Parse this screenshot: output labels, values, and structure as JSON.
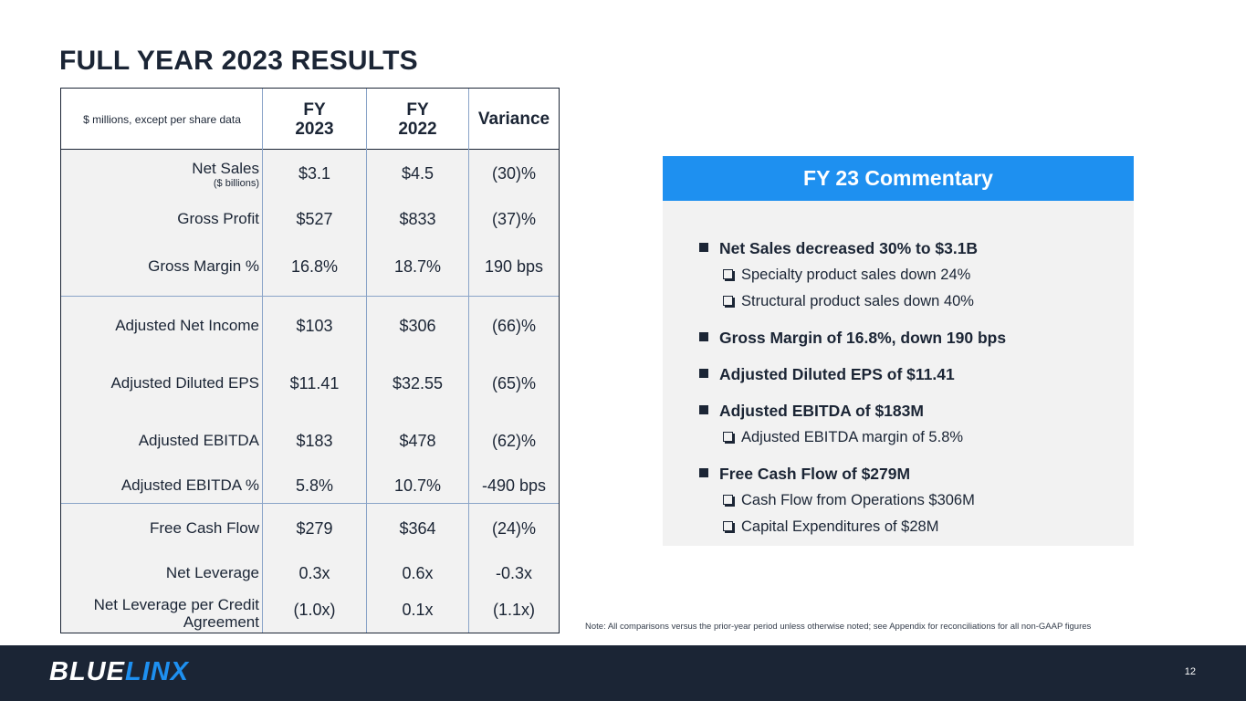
{
  "title": "FULL YEAR 2023 RESULTS",
  "table": {
    "units_note": "$ millions, except per share data",
    "headers": [
      "FY\n2023",
      "FY\n2022",
      "Variance"
    ],
    "rows": [
      {
        "label": "Net Sales",
        "sublabel": "($ billions)",
        "fy2023": "$3.1",
        "fy2022": "$4.5",
        "variance": "(30)%"
      },
      {
        "label": "Gross Profit",
        "fy2023": "$527",
        "fy2022": "$833",
        "variance": "(37)%"
      },
      {
        "label": "Gross Margin %",
        "fy2023": "16.8%",
        "fy2022": "18.7%",
        "variance": "190 bps"
      },
      {
        "label": "Adjusted Net Income",
        "fy2023": "$103",
        "fy2022": "$306",
        "variance": "(66)%"
      },
      {
        "label": "Adjusted Diluted EPS",
        "fy2023": "$11.41",
        "fy2022": "$32.55",
        "variance": "(65)%"
      },
      {
        "label": "Adjusted EBITDA",
        "fy2023": "$183",
        "fy2022": "$478",
        "variance": "(62)%"
      },
      {
        "label": "Adjusted EBITDA %",
        "fy2023": "5.8%",
        "fy2022": "10.7%",
        "variance": "-490 bps"
      },
      {
        "label": "Free Cash Flow",
        "fy2023": "$279",
        "fy2022": "$364",
        "variance": "(24)%"
      },
      {
        "label": "Net Leverage",
        "fy2023": "0.3x",
        "fy2022": "0.6x",
        "variance": "-0.3x"
      },
      {
        "label": "Net Leverage per Credit Agreement",
        "fy2023": "(1.0x)",
        "fy2022": "0.1x",
        "variance": "(1.1x)"
      }
    ]
  },
  "commentary": {
    "header": "FY 23 Commentary",
    "bullets": [
      {
        "text": "Net Sales decreased 30% to $3.1B",
        "subs": [
          "Specialty product sales down 24%",
          "Structural product sales down 40%"
        ]
      },
      {
        "text": "Gross Margin of 16.8%, down 190 bps",
        "subs": []
      },
      {
        "text": "Adjusted Diluted EPS of $11.41",
        "subs": []
      },
      {
        "text": "Adjusted EBITDA of $183M",
        "subs": [
          "Adjusted EBITDA margin of 5.8%"
        ]
      },
      {
        "text": "Free Cash Flow of $279M",
        "subs": [
          "Cash Flow from Operations $306M",
          "Capital Expenditures of $28M"
        ]
      }
    ]
  },
  "footnote": "Note:  All comparisons versus the prior-year period unless otherwise noted; see Appendix for reconciliations for all non-GAAP figures",
  "footer": {
    "logo_part1": "BLUE",
    "logo_part2": "LINX",
    "page_number": "12",
    "brand_color": "#1e90f0",
    "footer_color": "#1b2535"
  }
}
